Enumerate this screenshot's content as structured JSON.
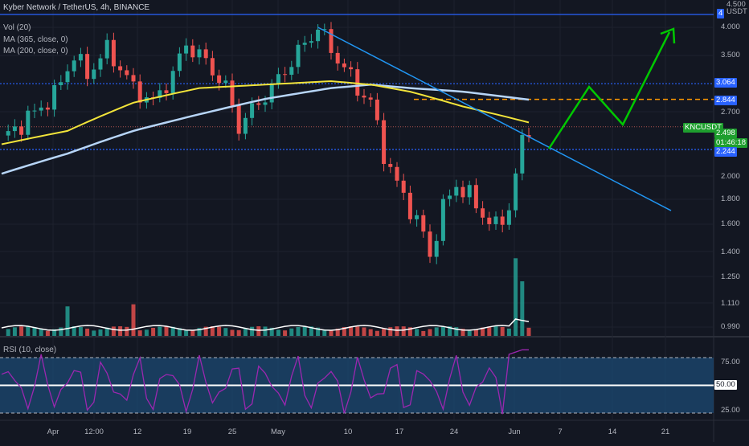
{
  "header": {
    "title": "Kyber Network / TetherUS, 4h, BINANCE",
    "indicators": [
      "Vol (20)",
      "MA (365, close, 0)",
      "MA (200, close, 0)"
    ],
    "rsi_label": "RSI (10, close)"
  },
  "price_scale": {
    "labels": [
      "4.000",
      "3.500",
      "2.700",
      "2.000",
      "1.800",
      "1.600",
      "1.400",
      "1.250",
      "1.110",
      "0.990"
    ],
    "unit_top": "4.500",
    "unit": "USDT"
  },
  "price_tags": {
    "top_line": "4",
    "level_3064": "3.064",
    "level_2844": "2.844",
    "level_2244": "2.244",
    "symbol": "KNCUSDT",
    "last_price": "2.498",
    "countdown": "01:46:18"
  },
  "rsi_scale": {
    "labels": [
      "75.00",
      "50.00",
      "25.00"
    ]
  },
  "time_axis": {
    "labels": [
      "Apr",
      "12:00",
      "12",
      "19",
      "25",
      "May",
      "10",
      "17",
      "24",
      "Jun",
      "7",
      "14",
      "21"
    ]
  },
  "colors": {
    "background": "#131722",
    "up": "#26a69a",
    "down": "#ef5350",
    "ma365": "#f2e43a",
    "ma200": "#b7d5f7",
    "trendline": "#2196f3",
    "level_line": "#2962ff",
    "resistance": "#ff9800",
    "projection": "#00c800",
    "rsi": "#9c27b0",
    "rsi_band": "#1c4a73"
  },
  "chart_data": {
    "type": "candlestick",
    "symbol": "KNCUSDT",
    "timeframe": "4h",
    "price_axis_labels": [
      4.0,
      3.5,
      2.7,
      2.0,
      1.8,
      1.6,
      1.4,
      1.25,
      1.11,
      0.99
    ],
    "horizontal_levels": [
      4.5,
      3.064,
      2.844,
      2.498,
      2.244
    ],
    "last_price": 2.498,
    "rsi_levels": [
      75,
      50,
      25
    ],
    "scale": "log",
    "price_path": [
      [
        0,
        2.35
      ],
      [
        4,
        2.6
      ],
      [
        8,
        2.9
      ],
      [
        11,
        3.5
      ],
      [
        13,
        3.2
      ],
      [
        16,
        3.6
      ],
      [
        18,
        3.3
      ],
      [
        20,
        3.0
      ],
      [
        23,
        2.8
      ],
      [
        26,
        3.2
      ],
      [
        28,
        3.7
      ],
      [
        31,
        3.4
      ],
      [
        34,
        3.0
      ],
      [
        36,
        2.5
      ],
      [
        39,
        2.8
      ],
      [
        41,
        3.0
      ],
      [
        44,
        3.4
      ],
      [
        46,
        3.7
      ],
      [
        48,
        4.0
      ],
      [
        50,
        3.6
      ],
      [
        52,
        3.3
      ],
      [
        54,
        3.0
      ],
      [
        56,
        2.8
      ],
      [
        58,
        2.2
      ],
      [
        60,
        1.9
      ],
      [
        62,
        1.7
      ],
      [
        64,
        1.5
      ],
      [
        65,
        1.35
      ],
      [
        67,
        1.7
      ],
      [
        69,
        1.9
      ],
      [
        71,
        1.8
      ],
      [
        73,
        1.65
      ],
      [
        75,
        1.55
      ],
      [
        77,
        1.7
      ],
      [
        78,
        2.0
      ],
      [
        79,
        2.3
      ],
      [
        80,
        2.5
      ]
    ],
    "ma365_path": [
      [
        0,
        2.3
      ],
      [
        10,
        2.45
      ],
      [
        20,
        2.8
      ],
      [
        30,
        3.0
      ],
      [
        40,
        3.05
      ],
      [
        50,
        3.1
      ],
      [
        56,
        3.05
      ],
      [
        62,
        2.95
      ],
      [
        70,
        2.75
      ],
      [
        80,
        2.55
      ]
    ],
    "ma200_path": [
      [
        0,
        2.0
      ],
      [
        10,
        2.2
      ],
      [
        20,
        2.45
      ],
      [
        30,
        2.65
      ],
      [
        40,
        2.85
      ],
      [
        50,
        3.0
      ],
      [
        56,
        3.05
      ],
      [
        62,
        3.0
      ],
      [
        70,
        2.95
      ],
      [
        80,
        2.84
      ]
    ]
  }
}
